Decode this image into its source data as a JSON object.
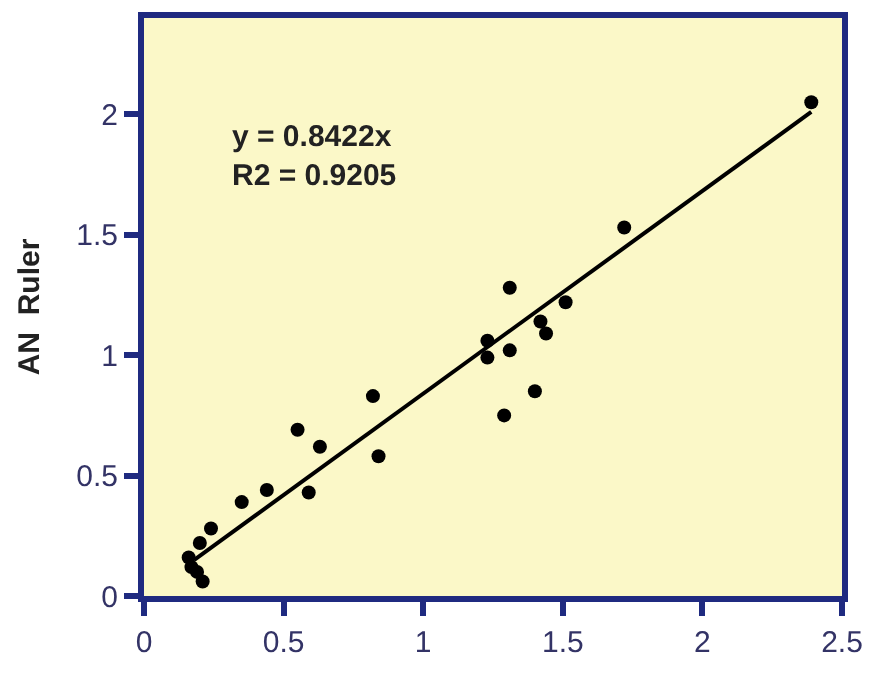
{
  "chart_data": {
    "type": "scatter",
    "ylabel": "AN  Ruler",
    "xlim": [
      0,
      2.5
    ],
    "ylim": [
      0,
      2.4
    ],
    "xticks": [
      0,
      0.5,
      1,
      1.5,
      2,
      2.5
    ],
    "yticks": [
      0,
      0.5,
      1,
      1.5,
      2
    ],
    "grid": false,
    "marker": "circle",
    "annotations": [
      "y = 0.8422x\nR2 = 0.9205"
    ],
    "series": [
      {
        "color": "#000000",
        "x": [
          2.39,
          1.72,
          1.31,
          1.51,
          1.42,
          1.44,
          1.23,
          1.23,
          1.31,
          1.4,
          1.29,
          0.82,
          0.84,
          0.55,
          0.63,
          0.59,
          0.44,
          0.35,
          0.24,
          0.2,
          0.16,
          0.17,
          0.19,
          0.21
        ],
        "values": [
          2.05,
          1.53,
          1.28,
          1.22,
          1.14,
          1.09,
          1.06,
          0.99,
          1.02,
          0.85,
          0.75,
          0.83,
          0.58,
          0.69,
          0.62,
          0.43,
          0.44,
          0.39,
          0.28,
          0.22,
          0.16,
          0.12,
          0.1,
          0.06
        ]
      },
      {
        "type": "line",
        "marker": "none",
        "color": "#000000",
        "x": [
          0.18,
          2.39
        ],
        "values": [
          0.15,
          2.01
        ]
      }
    ]
  }
}
